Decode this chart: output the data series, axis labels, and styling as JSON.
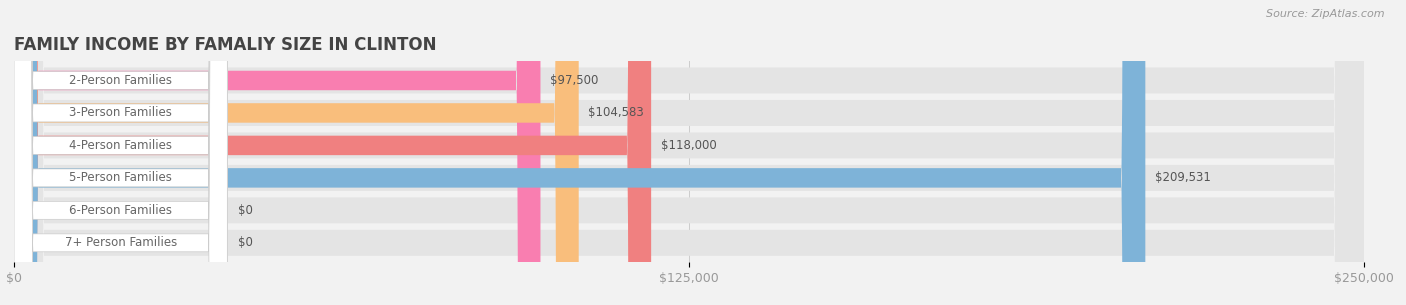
{
  "title": "FAMILY INCOME BY FAMALIY SIZE IN CLINTON",
  "source": "Source: ZipAtlas.com",
  "categories": [
    "2-Person Families",
    "3-Person Families",
    "4-Person Families",
    "5-Person Families",
    "6-Person Families",
    "7+ Person Families"
  ],
  "values": [
    97500,
    104583,
    118000,
    209531,
    0,
    0
  ],
  "bar_colors": [
    "#F97EB0",
    "#F9BE7C",
    "#F08080",
    "#7EB3D8",
    "#C3A8D1",
    "#7ECECE"
  ],
  "value_labels": [
    "$97,500",
    "$104,583",
    "$118,000",
    "$209,531",
    "$0",
    "$0"
  ],
  "xmax": 250000,
  "xticks": [
    0,
    125000,
    250000
  ],
  "xtick_labels": [
    "$0",
    "$125,000",
    "$250,000"
  ],
  "background_color": "#F2F2F2",
  "title_fontsize": 12,
  "tick_fontsize": 9,
  "label_fontsize": 8.5,
  "value_fontsize": 8.5
}
